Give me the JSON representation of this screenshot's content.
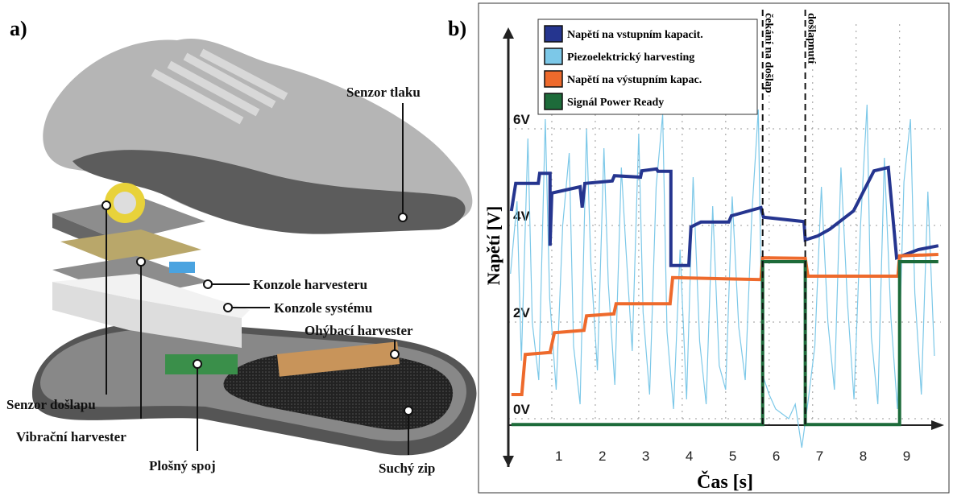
{
  "panel_a": {
    "label": "a)",
    "callouts": [
      "Senzor tlaku",
      "Konzole harvesteru",
      "Konzole systému",
      "Ohýbací harvester",
      "Senzor došlapu",
      "Vibrační harvester",
      "Plošný spoj",
      "Suchý zip"
    ]
  },
  "chart_data": {
    "type": "line",
    "label": "b)",
    "y_label": "Napětí [V]",
    "x_label": "Čas [s]",
    "xlim": [
      0,
      9.95
    ],
    "xticks": [
      1,
      2,
      3,
      4,
      5,
      6,
      7,
      8,
      9
    ],
    "ylim": [
      -1,
      8.1
    ],
    "yticks": [
      {
        "value": 0,
        "label": "0V"
      },
      {
        "value": 2,
        "label": "2V"
      },
      {
        "value": 4,
        "label": "4V"
      },
      {
        "value": 6,
        "label": "6V"
      }
    ],
    "grid": true,
    "legend": "upper left",
    "annotations": [
      {
        "text": "čekání na došlap",
        "x": 5.85
      },
      {
        "text": "došlapnutí",
        "x": 6.83
      }
    ],
    "series": [
      {
        "name": "Napětí na vstupním kapacit.",
        "color": "#25358f",
        "x": [
          0.07,
          0.17,
          0.69,
          0.72,
          0.96,
          0.96,
          1.0,
          1.65,
          1.7,
          1.76,
          2.39,
          2.44,
          3.04,
          3.07,
          3.41,
          3.44,
          3.74,
          3.74,
          4.15,
          4.2,
          4.43,
          5.07,
          5.13,
          5.81,
          5.87,
          6.8,
          6.83,
          7.11,
          7.39,
          7.94,
          8.41,
          8.74,
          8.93,
          9.43,
          9.89
        ],
        "values": [
          4.3,
          4.87,
          4.87,
          5.08,
          5.08,
          3.58,
          4.67,
          4.8,
          4.37,
          4.87,
          4.92,
          5.03,
          5.0,
          5.13,
          5.17,
          5.12,
          5.12,
          3.17,
          3.17,
          3.97,
          4.07,
          4.07,
          4.2,
          4.37,
          4.17,
          4.08,
          3.7,
          3.78,
          3.92,
          4.3,
          5.13,
          5.2,
          3.33,
          3.5,
          3.58
        ]
      },
      {
        "name": "Piezoelektrický harvesting",
        "color": "#7cc8e8",
        "x": [
          0.05,
          0.2,
          0.3,
          0.45,
          0.55,
          0.7,
          0.85,
          0.95,
          1.1,
          1.25,
          1.4,
          1.5,
          1.65,
          1.8,
          1.9,
          2.05,
          2.2,
          2.3,
          2.45,
          2.6,
          2.7,
          2.85,
          3.0,
          3.1,
          3.25,
          3.4,
          3.55,
          3.65,
          3.8,
          3.95,
          4.1,
          4.25,
          4.4,
          4.55,
          4.7,
          4.85,
          5.0,
          5.15,
          5.3,
          5.45,
          5.6,
          5.75,
          5.85,
          6.0,
          6.15,
          6.3,
          6.45,
          6.6,
          6.75,
          6.9,
          7.05,
          7.2,
          7.35,
          7.5,
          7.65,
          7.8,
          7.95,
          8.1,
          8.25,
          8.35,
          8.5,
          8.65,
          8.8,
          8.95,
          9.1,
          9.25,
          9.35,
          9.5,
          9.65,
          9.8
        ],
        "values": [
          3.0,
          4.5,
          1.2,
          5.8,
          2.0,
          0.8,
          6.2,
          2.5,
          0.6,
          4.0,
          5.5,
          1.5,
          0.3,
          6.0,
          3.2,
          1.0,
          5.6,
          2.8,
          0.7,
          5.2,
          3.6,
          1.4,
          5.9,
          2.2,
          0.5,
          4.8,
          6.3,
          1.8,
          0.2,
          3.5,
          0.4,
          5.0,
          1.6,
          0.3,
          4.4,
          1.1,
          0.6,
          4.6,
          1.9,
          0.8,
          4.2,
          6.4,
          0.9,
          0.5,
          0.2,
          0.1,
          0.0,
          0.3,
          -0.6,
          0.4,
          1.5,
          4.8,
          2.0,
          0.6,
          5.2,
          2.4,
          0.4,
          4.0,
          6.5,
          1.7,
          0.3,
          5.4,
          2.1,
          0.2,
          4.9,
          6.2,
          2.6,
          0.5,
          4.7,
          1.3
        ]
      },
      {
        "name": "Napětí na výstupním kapac.",
        "color": "#ee6a2c",
        "x": [
          0.07,
          0.31,
          0.39,
          0.96,
          1.06,
          1.74,
          1.8,
          2.43,
          2.48,
          3.72,
          3.78,
          5.81,
          5.85,
          6.83,
          6.89,
          8.96,
          9.0,
          9.89
        ],
        "values": [
          0.5,
          0.5,
          1.33,
          1.37,
          1.78,
          1.83,
          2.13,
          2.17,
          2.38,
          2.38,
          2.92,
          2.88,
          3.33,
          3.32,
          2.95,
          2.95,
          3.37,
          3.4
        ]
      },
      {
        "name": "Signál Power Ready",
        "color": "#1d6b3a",
        "x": [
          0.07,
          5.85,
          5.85,
          6.83,
          6.83,
          9.0,
          9.0,
          9.89
        ],
        "values": [
          -0.12,
          -0.12,
          3.25,
          3.25,
          -0.12,
          -0.12,
          3.25,
          3.25
        ]
      }
    ]
  }
}
